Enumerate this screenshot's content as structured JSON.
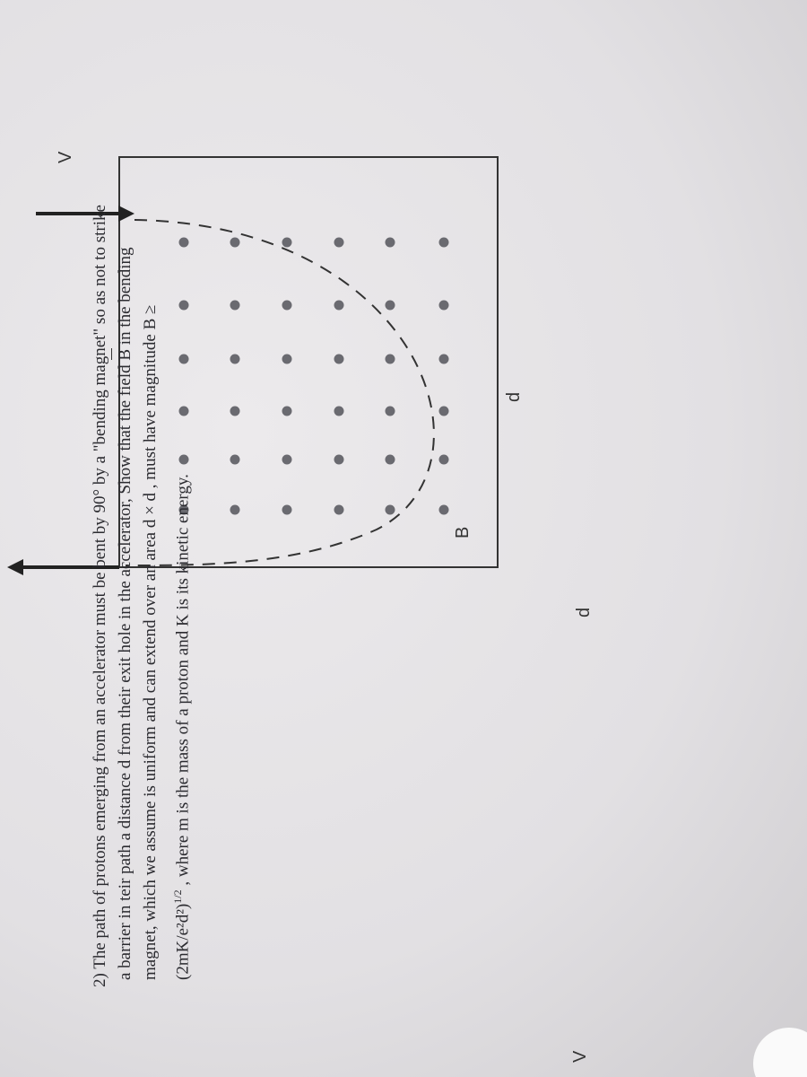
{
  "problem": {
    "lines": [
      [
        "2) The path of protons emerging from an accelerator must be bent by 90° by a \"bending magnet\" so as not to strike"
      ],
      [
        "a barrier in teir path a distance d from their exit hole in the accelerator, Show that the field ",
        "B",
        " in the bending"
      ],
      [
        "magnet, which we assume is uniform and can extend over an area d × d , must have magnitude B ≥"
      ],
      [
        "(2mK/e²d²)",
        "1/2",
        " , where m is the mass of a proton and K is its kinetic energy."
      ]
    ]
  },
  "figure": {
    "labels": {
      "v_in": "V",
      "v_out": "V",
      "d_top": "d",
      "d_side": "d",
      "field": "B"
    }
  }
}
